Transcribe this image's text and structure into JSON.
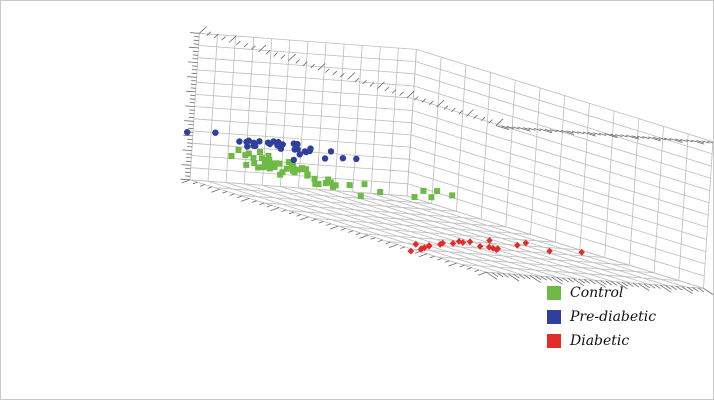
{
  "chart_data": {
    "type": "scatter",
    "dimensions": 3,
    "legend_position": "bottom-right",
    "grid": true,
    "series": [
      {
        "name": "Control",
        "color": "#6dbb45",
        "marker": "square",
        "points": [
          [
            -4.64,
            -0.94,
            -0.42
          ],
          [
            -4.5,
            -0.52,
            -0.71
          ],
          [
            -4.38,
            -0.05,
            -0.52
          ],
          [
            -4.12,
            -0.3,
            -0.5
          ],
          [
            -4.5,
            0.05,
            -0.33
          ],
          [
            -3.99,
            -0.21,
            -0.92
          ],
          [
            -4.11,
            0.27,
            -0.92
          ],
          [
            -4.46,
            -0.28,
            -0.46
          ],
          [
            -4.14,
            -0.21,
            -1.03
          ],
          [
            -4.12,
            0.82,
            -0.5
          ],
          [
            -3.61,
            -0.59,
            -0.36
          ],
          [
            -3.68,
            0.58,
            -0.58
          ],
          [
            -3.68,
            -0.23,
            -0.51
          ],
          [
            -3.61,
            -1.13,
            -0.68
          ],
          [
            -3.67,
            0.11,
            -0.42
          ],
          [
            -3.44,
            -0.53,
            -0.73
          ],
          [
            -3.79,
            -0.12,
            -0.41
          ],
          [
            -3.68,
            -0.8,
            -0.56
          ],
          [
            -3.4,
            -0.09,
            -0.83
          ],
          [
            -3.46,
            0.3,
            -0.71
          ],
          [
            -3.77,
            0.07,
            -0.42
          ],
          [
            -3.98,
            -0.34,
            -0.28
          ],
          [
            -3.78,
            0.04,
            -0.46
          ],
          [
            -3.88,
            -0.38,
            -0.63
          ],
          [
            -3.54,
            -0.6,
            -0.35
          ],
          [
            -3.75,
            -0.01,
            -0.74
          ],
          [
            -3.47,
            -0.58,
            -0.63
          ],
          [
            -3.64,
            -0.12,
            -0.7
          ],
          [
            -3.82,
            -0.02,
            -0.72
          ],
          [
            -3.64,
            -0.79,
            -0.56
          ],
          [
            -3.47,
            -0.34,
            -0.66
          ],
          [
            -3.3,
            -0.52,
            -0.58
          ],
          [
            -3.18,
            -0.64,
            -0.47
          ],
          [
            -3.61,
            -0.3,
            -1.08
          ],
          [
            -3.77,
            -0.48,
            -0.56
          ],
          [
            -2.98,
            -0.7,
            -0.86
          ],
          [
            -3.61,
            0.11,
            -0.55
          ],
          [
            -2.91,
            -0.13,
            -0.35
          ],
          [
            -3.06,
            -0.06,
            -0.62
          ],
          [
            -2.58,
            -0.57,
            -0.86
          ],
          [
            -2.76,
            -0.12,
            -0.61
          ],
          [
            -2.75,
            -0.54,
            -1.02
          ],
          [
            -2.72,
            -0.38,
            -1.01
          ],
          [
            -2.92,
            -0.13,
            -0.3
          ],
          [
            -2.98,
            -0.44,
            -0.65
          ],
          [
            -2.17,
            -0.37,
            -0.74
          ],
          [
            -2.21,
            -0.33,
            -0.86
          ],
          [
            -2.42,
            -0.53,
            -0.73
          ],
          [
            -2.26,
            -0.2,
            -0.5
          ],
          [
            -1.74,
            -0.72,
            -1.02
          ],
          [
            -2.18,
            -0.89,
            -0.68
          ],
          [
            -2.09,
            -1.31,
            -0.53
          ],
          [
            -2.18,
            -2.03,
            -0.93
          ],
          [
            -1.45,
            -2.91,
            -0.66
          ],
          [
            -1.79,
            -2.76,
            -0.88
          ],
          [
            -1.66,
            -2.89,
            -0.45
          ],
          [
            -1.57,
            -3.27,
            -0.36
          ],
          [
            -1.43,
            -3.64,
            -0.47
          ]
        ]
      },
      {
        "name": "Pre-diabetic",
        "color": "#2e3f9e",
        "marker": "circle",
        "points": [
          [
            -3.45,
            3.43,
            0.93
          ],
          [
            -3.2,
            2.74,
            1.14
          ],
          [
            -2.24,
            2.91,
            1.22
          ],
          [
            -1.77,
            1.58,
            0.98
          ],
          [
            -2.73,
            2.49,
            0.98
          ],
          [
            -2.36,
            2.47,
            0.99
          ],
          [
            -2.37,
            2.4,
            0.97
          ],
          [
            -2.66,
            2.06,
            1.0
          ],
          [
            -2.88,
            1.98,
            0.67
          ],
          [
            -2.49,
            2.09,
            1.19
          ],
          [
            -2.73,
            2.15,
            1.06
          ],
          [
            -2.77,
            1.31,
            0.95
          ],
          [
            -2.14,
            1.26,
            1.05
          ],
          [
            -2.54,
            1.7,
            1.12
          ],
          [
            -2.22,
            1.77,
            1.35
          ],
          [
            -2.33,
            1.64,
            1.11
          ],
          [
            -2.03,
            1.46,
            1.42
          ],
          [
            -1.54,
            1.67,
            1.24
          ],
          [
            -2.31,
            1.82,
            1.32
          ],
          [
            -1.79,
            1.66,
            1.52
          ],
          [
            -1.89,
            1.23,
            1.11
          ],
          [
            -2.37,
            1.45,
            0.93
          ],
          [
            -1.62,
            1.43,
            1.28
          ],
          [
            -2.36,
            1.41,
            1.17
          ],
          [
            -2.21,
            1.06,
            1.05
          ],
          [
            -1.83,
            1.7,
            0.63
          ],
          [
            -1.87,
            1.06,
            1.29
          ],
          [
            -1.64,
            0.62,
            1.33
          ],
          [
            -1.82,
            0.57,
            0.84
          ],
          [
            -1.48,
            0.39,
            1.09
          ],
          [
            -1.34,
            0.09,
            1.17
          ]
        ]
      },
      {
        "name": "Diabetic",
        "color": "#e52b27",
        "marker": "diamond",
        "points": [
          [
            0.29,
            0.13,
            -2.84
          ],
          [
            0.3,
            -0.22,
            -2.69
          ],
          [
            0.24,
            -0.6,
            -2.49
          ],
          [
            0.39,
            -0.88,
            -2.23
          ],
          [
            0.68,
            -1.07,
            -1.93
          ],
          [
            0.88,
            -1.58,
            -2.02
          ],
          [
            1.02,
            -2.04,
            -2.01
          ],
          [
            0.99,
            -1.76,
            -1.61
          ],
          [
            0.28,
            -0.54,
            -2.5
          ],
          [
            0.47,
            -0.11,
            -2.52
          ],
          [
            0.26,
            -0.31,
            -2.67
          ],
          [
            0.02,
            -0.41,
            -2.57
          ],
          [
            0.31,
            -1.37,
            -2.24
          ],
          [
            0.14,
            -1.14,
            -2.43
          ],
          [
            0.57,
            -1.37,
            -2.03
          ],
          [
            0.72,
            -1.42,
            -1.89
          ],
          [
            1.26,
            -1.53,
            -1.89
          ],
          [
            1.31,
            -1.32,
            -1.82
          ],
          [
            0.84,
            -2.24,
            -2.15
          ],
          [
            2.15,
            -1.18,
            -1.2
          ],
          [
            2.25,
            -1.35,
            -1.0
          ],
          [
            3.7,
            -1.41,
            -0.58
          ],
          [
            1.5,
            -3.28,
            -1.7
          ]
        ]
      }
    ]
  },
  "legend": {
    "items": [
      {
        "label": "Control",
        "color": "#6dbb45"
      },
      {
        "label": "Pre-diabetic",
        "color": "#2e3f9e"
      },
      {
        "label": "Diabetic",
        "color": "#e52b27"
      }
    ]
  }
}
